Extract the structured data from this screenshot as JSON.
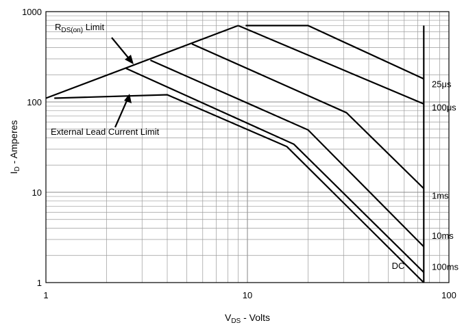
{
  "chart_data": {
    "type": "line",
    "title": "",
    "xlabel": {
      "main": "V",
      "sub": "DS",
      "rest": " - Volts"
    },
    "ylabel": {
      "main": "I",
      "sub": "D",
      "rest": " - Amperes"
    },
    "x_scale": "log",
    "y_scale": "log",
    "xlim": [
      1,
      100
    ],
    "ylim": [
      1,
      1000
    ],
    "x_ticks": [
      "1",
      "10",
      "100"
    ],
    "y_ticks": [
      "1",
      "10",
      "100",
      "1000"
    ],
    "grid": true,
    "series": [
      {
        "name": "25μs",
        "points": [
          [
            9.8,
            700
          ],
          [
            20,
            700
          ],
          [
            75,
            180
          ]
        ]
      },
      {
        "name": "100μs",
        "points": [
          [
            9.0,
            700
          ],
          [
            75,
            95
          ]
        ]
      },
      {
        "name": "1ms",
        "points": [
          [
            5.3,
            440
          ],
          [
            31,
            76
          ],
          [
            75,
            11
          ]
        ]
      },
      {
        "name": "10ms",
        "points": [
          [
            3.3,
            290
          ],
          [
            20,
            49
          ],
          [
            75,
            2.5
          ]
        ]
      },
      {
        "name": "100ms",
        "points": [
          [
            2.5,
            235
          ],
          [
            17,
            34
          ],
          [
            75,
            1.3
          ]
        ]
      },
      {
        "name": "DC",
        "points": [
          [
            1.1,
            110
          ],
          [
            4.0,
            120
          ],
          [
            15.7,
            32
          ],
          [
            75,
            1.0
          ]
        ]
      }
    ],
    "rds_on_limit": {
      "points": [
        [
          1.0,
          110
        ],
        [
          9.0,
          700
        ]
      ]
    },
    "vertical_limit": {
      "x": 75,
      "y_range": [
        1,
        700
      ]
    },
    "annotations": {
      "rds": {
        "main": "R",
        "sub": "DS(on)",
        "rest": " Limit"
      },
      "lead": "External Lead Current Limit"
    }
  }
}
